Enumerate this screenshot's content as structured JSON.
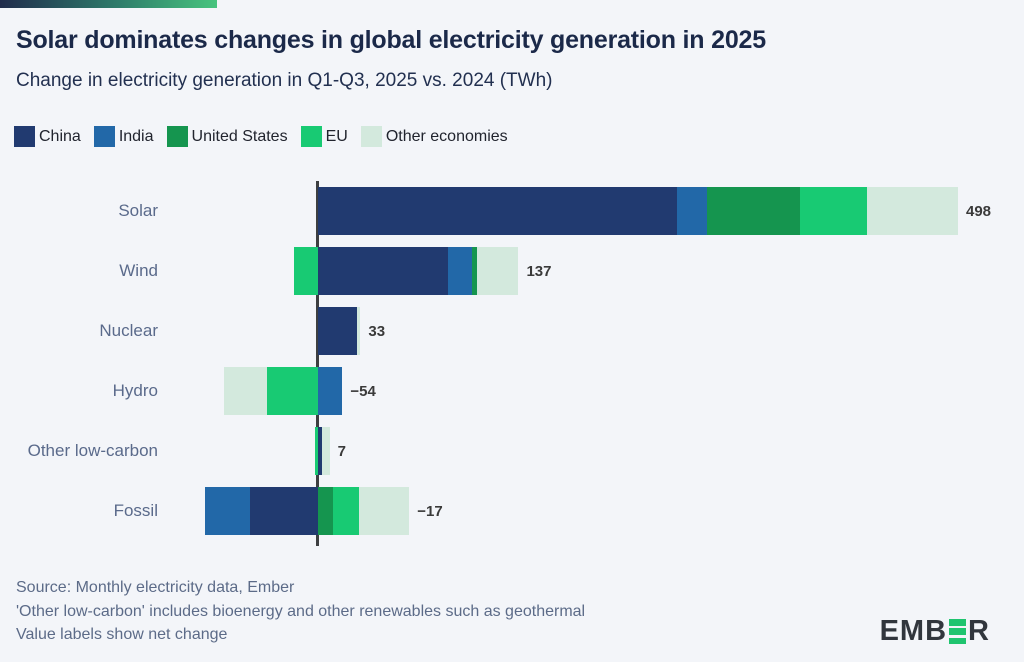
{
  "header": {
    "title": "Solar dominates changes in global electricity generation in 2025",
    "subtitle": "Change in electricity generation in Q1-Q3, 2025 vs. 2024 (TWh)"
  },
  "legend": [
    {
      "label": "China",
      "color": "#213a70"
    },
    {
      "label": "India",
      "color": "#2268a8"
    },
    {
      "label": "United States",
      "color": "#15954f"
    },
    {
      "label": "EU",
      "color": "#18ca73"
    },
    {
      "label": "Other economies",
      "color": "#d3e9dd"
    }
  ],
  "chart_data": {
    "type": "bar",
    "orientation": "horizontal",
    "stacked": true,
    "unit": "TWh",
    "title": "Change in electricity generation in Q1-Q3, 2025 vs. 2024 (TWh)",
    "categories": [
      "Solar",
      "Wind",
      "Nuclear",
      "Hydro",
      "Other low-carbon",
      "Fossil"
    ],
    "series": [
      {
        "name": "China",
        "color": "#213a70",
        "values": [
          279,
          101,
          30,
          0,
          3,
          -53
        ]
      },
      {
        "name": "India",
        "color": "#2268a8",
        "values": [
          24,
          19,
          0,
          19,
          0,
          -35
        ]
      },
      {
        "name": "United States",
        "color": "#15954f",
        "values": [
          72,
          4,
          0,
          0,
          0,
          12
        ]
      },
      {
        "name": "EU",
        "color": "#18ca73",
        "values": [
          52,
          -19,
          0,
          -40,
          -2,
          20
        ]
      },
      {
        "name": "Other economies",
        "color": "#d3e9dd",
        "values": [
          71,
          32,
          3,
          -33,
          6,
          39
        ]
      }
    ],
    "net_values": [
      498,
      137,
      33,
      -54,
      7,
      -17
    ],
    "value_labels": [
      "498",
      "137",
      "33",
      "−54",
      "7",
      "−17"
    ],
    "xlim": [
      -130,
      550
    ],
    "zero_line": true,
    "grid": false,
    "legend_position": "top"
  },
  "footer": {
    "lines": [
      "Source: Monthly electricity data, Ember",
      "'Other low-carbon' includes bioenergy and other renewables such as geothermal",
      "Value labels show net change"
    ]
  },
  "logo": {
    "name": "EMBER",
    "text_before": "EMB",
    "text_after": "R",
    "accent_color": "#1fc46f"
  }
}
